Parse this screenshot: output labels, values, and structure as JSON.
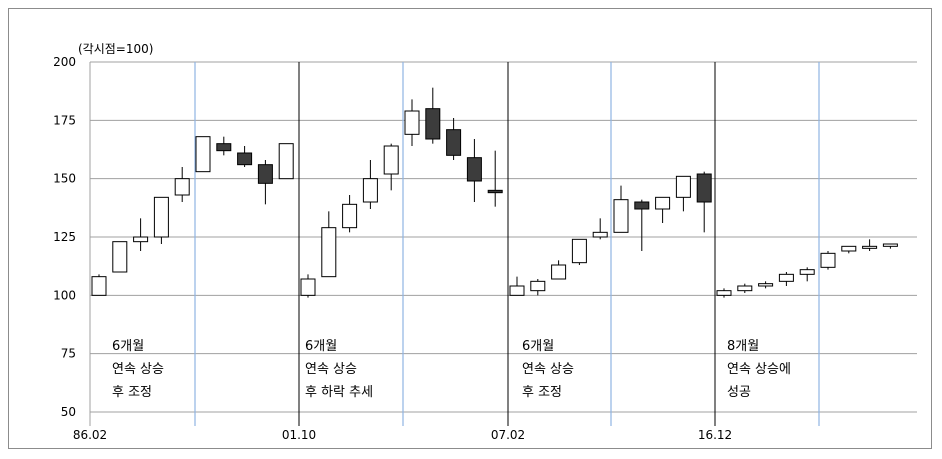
{
  "chart_data": {
    "type": "candlestick",
    "title": "",
    "unit_label": "(각시점=100)",
    "xlabel": "",
    "ylabel": "",
    "ylim": [
      50,
      200
    ],
    "y_ticks": [
      50,
      75,
      100,
      125,
      150,
      175,
      200
    ],
    "x_ticks": [
      "86.02",
      "01.10",
      "07.02",
      "16.12"
    ],
    "grid": "horizontal",
    "legend": "none",
    "colors": {
      "up": "#ffffff",
      "down": "#3c3c3c",
      "outline": "#000000",
      "period_divider": "#000000",
      "phase_divider": "#8fb4e3"
    },
    "periods": [
      {
        "start_label": "86.02",
        "annotation": [
          "6개월",
          "연속 상승",
          "후 조정"
        ],
        "candles": [
          {
            "o": 100,
            "h": 109,
            "l": 100,
            "c": 108
          },
          {
            "o": 110,
            "h": 123,
            "l": 110,
            "c": 123
          },
          {
            "o": 123,
            "h": 133,
            "l": 119,
            "c": 125
          },
          {
            "o": 125,
            "h": 142,
            "l": 122,
            "c": 142
          },
          {
            "o": 143,
            "h": 155,
            "l": 140,
            "c": 150
          },
          {
            "o": 153,
            "h": 168,
            "l": 153,
            "c": 168
          },
          {
            "o": 165,
            "h": 168,
            "l": 160,
            "c": 162
          },
          {
            "o": 161,
            "h": 164,
            "l": 155,
            "c": 156
          },
          {
            "o": 156,
            "h": 158,
            "l": 139,
            "c": 148
          },
          {
            "o": 150,
            "h": 165,
            "l": 150,
            "c": 165
          }
        ]
      },
      {
        "start_label": "01.10",
        "annotation": [
          "6개월",
          "연속 상승",
          "후 하락 추세"
        ],
        "candles": [
          {
            "o": 100,
            "h": 109,
            "l": 99,
            "c": 107
          },
          {
            "o": 108,
            "h": 136,
            "l": 108,
            "c": 129
          },
          {
            "o": 129,
            "h": 143,
            "l": 127,
            "c": 139
          },
          {
            "o": 140,
            "h": 158,
            "l": 137,
            "c": 150
          },
          {
            "o": 152,
            "h": 165,
            "l": 145,
            "c": 164
          },
          {
            "o": 169,
            "h": 184,
            "l": 164,
            "c": 179
          },
          {
            "o": 180,
            "h": 189,
            "l": 165,
            "c": 167
          },
          {
            "o": 171,
            "h": 176,
            "l": 158,
            "c": 160
          },
          {
            "o": 159,
            "h": 167,
            "l": 140,
            "c": 149
          },
          {
            "o": 145,
            "h": 162,
            "l": 138,
            "c": 144
          }
        ]
      },
      {
        "start_label": "07.02",
        "annotation": [
          "6개월",
          "연속 상승",
          "후 조정"
        ],
        "candles": [
          {
            "o": 100,
            "h": 108,
            "l": 100,
            "c": 104
          },
          {
            "o": 102,
            "h": 107,
            "l": 100,
            "c": 106
          },
          {
            "o": 107,
            "h": 115,
            "l": 107,
            "c": 113
          },
          {
            "o": 114,
            "h": 124,
            "l": 113,
            "c": 124
          },
          {
            "o": 125,
            "h": 133,
            "l": 124,
            "c": 127
          },
          {
            "o": 127,
            "h": 147,
            "l": 127,
            "c": 141
          },
          {
            "o": 140,
            "h": 141,
            "l": 119,
            "c": 137
          },
          {
            "o": 137,
            "h": 142,
            "l": 131,
            "c": 142
          },
          {
            "o": 142,
            "h": 151,
            "l": 136,
            "c": 151
          },
          {
            "o": 152,
            "h": 153,
            "l": 127,
            "c": 140
          }
        ]
      },
      {
        "start_label": "16.12",
        "annotation": [
          "8개월",
          "연속 상승에",
          "성공"
        ],
        "candles": [
          {
            "o": 100,
            "h": 103,
            "l": 99,
            "c": 102
          },
          {
            "o": 102,
            "h": 105,
            "l": 101,
            "c": 104
          },
          {
            "o": 104,
            "h": 106,
            "l": 103,
            "c": 105
          },
          {
            "o": 106,
            "h": 110,
            "l": 104,
            "c": 109
          },
          {
            "o": 109,
            "h": 112,
            "l": 106,
            "c": 111
          },
          {
            "o": 112,
            "h": 119,
            "l": 111,
            "c": 118
          },
          {
            "o": 119,
            "h": 121,
            "l": 118,
            "c": 121
          },
          {
            "o": 121,
            "h": 124,
            "l": 119,
            "c": 121
          },
          {
            "o": 121,
            "h": 122,
            "l": 120,
            "c": 122
          }
        ]
      }
    ]
  }
}
